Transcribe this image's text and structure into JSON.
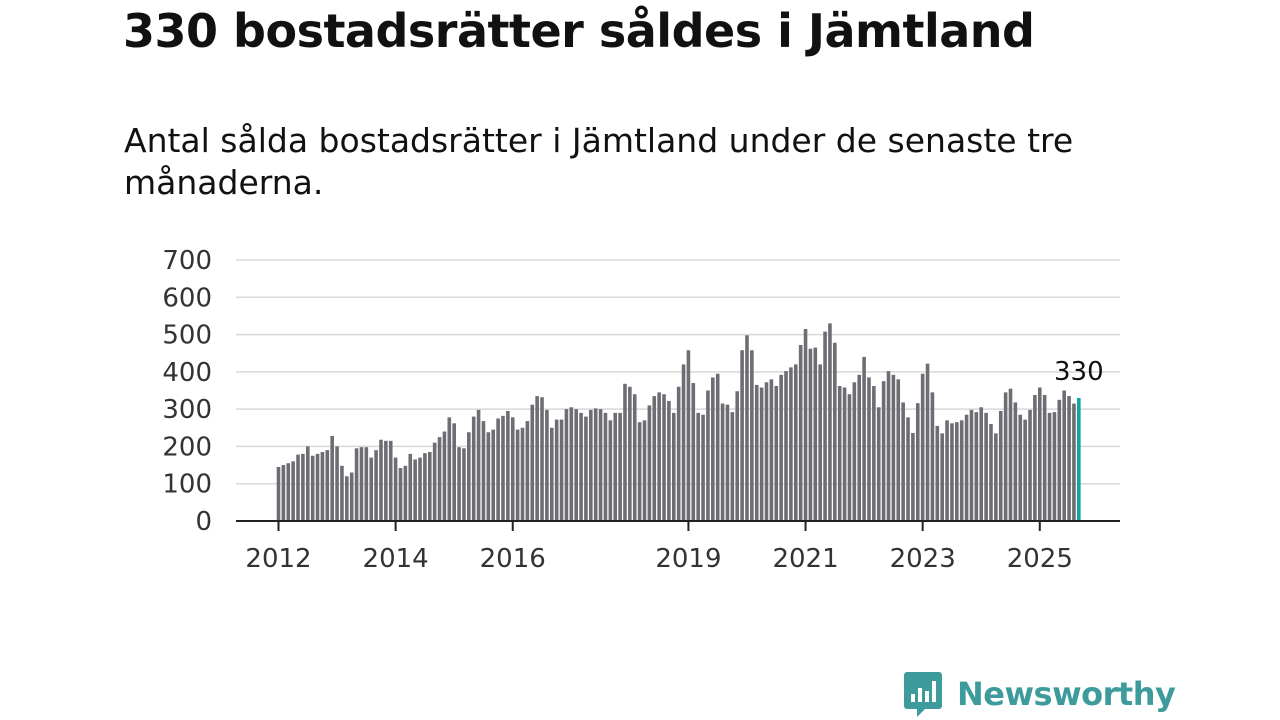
{
  "title": "330 bostadsrätter såldes i Jämtland",
  "subtitle": "Antal sålda bostadsrätter i Jämtland under de senaste tre månaderna.",
  "brand": {
    "name": "Newsworthy",
    "color": "#3d9c9b"
  },
  "colors": {
    "bar": "#6e6d74",
    "highlight": "#0ea5a5",
    "grid": "#d8d8d8",
    "axis": "#222222"
  },
  "chart_data": {
    "type": "bar",
    "x_start": "2012-01",
    "frequency": "monthly",
    "ylim": [
      0,
      700
    ],
    "yticks": [
      0,
      100,
      200,
      300,
      400,
      500,
      600,
      700
    ],
    "xticks": [
      {
        "label": "2012",
        "date": "2012-01"
      },
      {
        "label": "2014",
        "date": "2014-01"
      },
      {
        "label": "2016",
        "date": "2016-01"
      },
      {
        "label": "2019",
        "date": "2019-01"
      },
      {
        "label": "2021",
        "date": "2021-01"
      },
      {
        "label": "2023",
        "date": "2023-01"
      },
      {
        "label": "2025",
        "date": "2025-01"
      }
    ],
    "grid": true,
    "values": [
      145,
      150,
      155,
      160,
      178,
      180,
      200,
      175,
      180,
      185,
      190,
      228,
      200,
      148,
      120,
      130,
      195,
      198,
      198,
      170,
      190,
      218,
      215,
      215,
      170,
      142,
      148,
      180,
      165,
      170,
      182,
      185,
      210,
      225,
      240,
      278,
      262,
      198,
      195,
      238,
      280,
      298,
      268,
      238,
      245,
      275,
      282,
      295,
      278,
      245,
      250,
      268,
      312,
      335,
      332,
      298,
      250,
      272,
      272,
      300,
      305,
      300,
      290,
      280,
      298,
      302,
      300,
      290,
      270,
      290,
      290,
      368,
      360,
      340,
      265,
      270,
      310,
      335,
      345,
      340,
      322,
      290,
      360,
      420,
      458,
      370,
      290,
      285,
      350,
      385,
      395,
      315,
      312,
      292,
      348,
      458,
      498,
      458,
      365,
      358,
      372,
      380,
      362,
      392,
      402,
      412,
      420,
      472,
      515,
      462,
      465,
      420,
      508,
      530,
      478,
      362,
      358,
      340,
      372,
      392,
      440,
      385,
      362,
      305,
      375,
      402,
      392,
      380,
      318,
      278,
      236,
      316,
      395,
      422,
      345,
      255,
      235,
      270,
      262,
      265,
      270,
      285,
      298,
      292,
      305,
      290,
      260,
      235,
      295,
      345,
      355,
      318,
      285,
      272,
      298,
      338,
      358,
      338,
      290,
      292,
      325,
      350,
      335,
      315,
      330
    ],
    "highlight_label": "330"
  }
}
